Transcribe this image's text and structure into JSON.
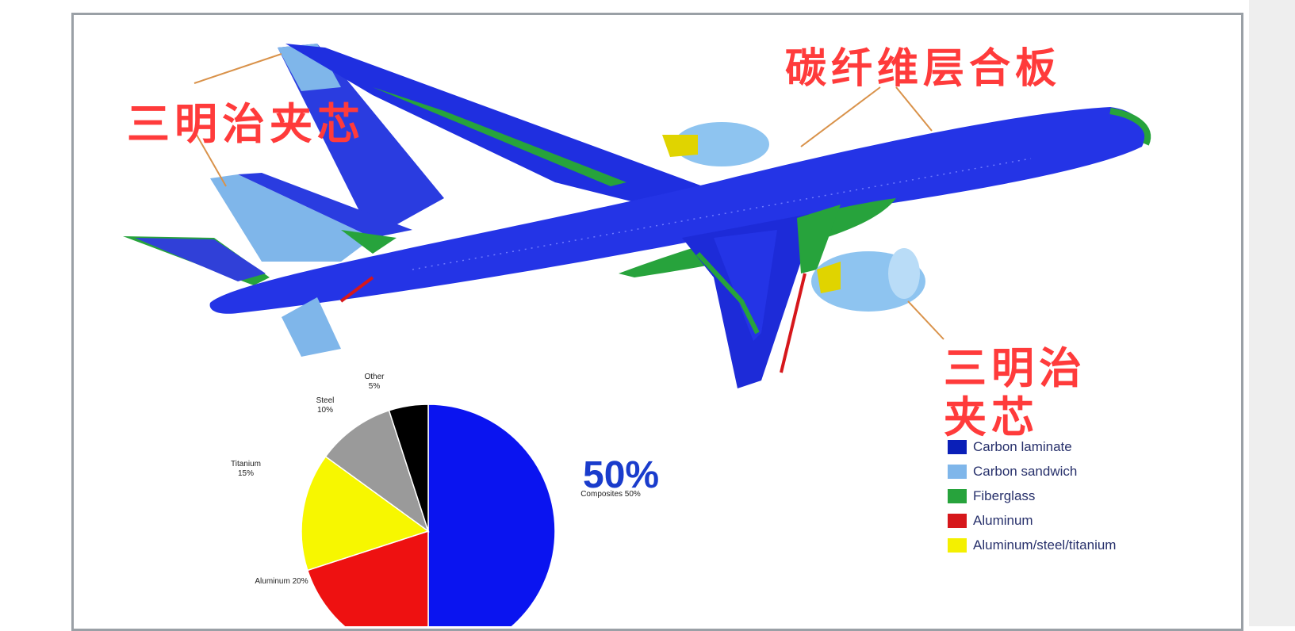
{
  "labels": {
    "sandwich_core_top": "三明治夹芯",
    "carbon_laminate": "碳纤维层合板",
    "sandwich_core_right_line1": "三明治",
    "sandwich_core_right_line2": "夹芯"
  },
  "legend": [
    {
      "label": "Carbon laminate",
      "color": "#0a1fb8"
    },
    {
      "label": "Carbon sandwich",
      "color": "#7fb6ea"
    },
    {
      "label": "Fiberglass",
      "color": "#27a33c"
    },
    {
      "label": "Aluminum",
      "color": "#d6171b"
    },
    {
      "label": "Aluminum/steel/titanium",
      "color": "#f4f000"
    }
  ],
  "chart_data": {
    "type": "pie",
    "slices": [
      {
        "name": "Composites",
        "value": 50,
        "label": "Composites 50%",
        "color": "#0a14f0"
      },
      {
        "name": "Aluminum",
        "value": 20,
        "label": "Aluminum 20%",
        "color": "#ee1111"
      },
      {
        "name": "Titanium",
        "value": 15,
        "label": "Titanium 15%",
        "color": "#f7f700"
      },
      {
        "name": "Steel",
        "value": 10,
        "label": "Steel 10%",
        "color": "#9a9a9a"
      },
      {
        "name": "Other",
        "value": 5,
        "label": "Other 5%",
        "color": "#000000"
      }
    ],
    "highlight": "50%"
  }
}
